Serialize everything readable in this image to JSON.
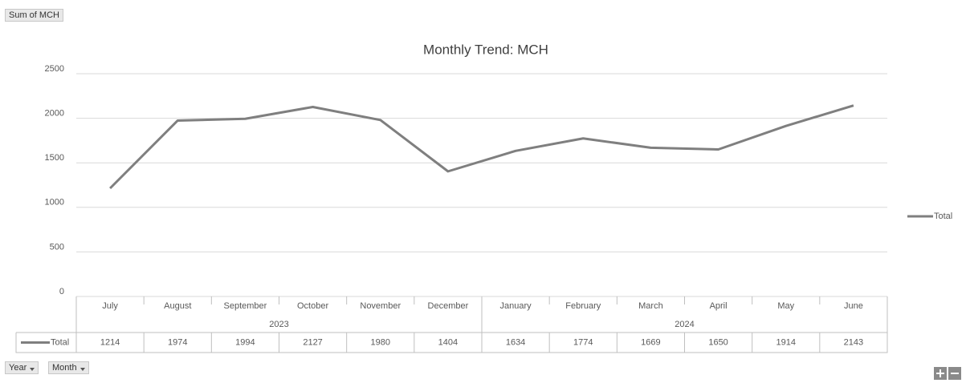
{
  "pivot_buttons": {
    "value_field": "Sum of MCH",
    "axis_fields": [
      "Year",
      "Month"
    ]
  },
  "chart_data": {
    "type": "line",
    "title": "Monthly Trend: MCH",
    "categories": [
      "July",
      "August",
      "September",
      "October",
      "November",
      "December",
      "January",
      "February",
      "March",
      "April",
      "May",
      "June"
    ],
    "year_groups": [
      {
        "label": "2023",
        "count": 6
      },
      {
        "label": "2024",
        "count": 6
      }
    ],
    "series": [
      {
        "name": "Total",
        "color": "#7f7f7f",
        "values": [
          1214,
          1974,
          1994,
          2127,
          1980,
          1404,
          1634,
          1774,
          1669,
          1650,
          1914,
          2143
        ]
      }
    ],
    "ylim": [
      0,
      2500
    ],
    "yticks": [
      0,
      500,
      1000,
      1500,
      2000,
      2500
    ],
    "grid": true,
    "legend": "right",
    "data_table": true
  }
}
